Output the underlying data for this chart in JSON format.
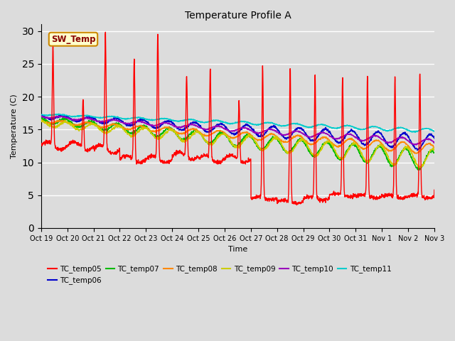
{
  "title": "Temperature Profile A",
  "xlabel": "Time",
  "ylabel": "Temperature (C)",
  "ylim": [
    0,
    31
  ],
  "yticks": [
    0,
    5,
    10,
    15,
    20,
    25,
    30
  ],
  "legend_entries": [
    "TC_temp05",
    "TC_temp06",
    "TC_temp07",
    "TC_temp08",
    "TC_temp09",
    "TC_temp10",
    "TC_temp11"
  ],
  "line_colors": [
    "#ff0000",
    "#0000cc",
    "#00bb00",
    "#ff8800",
    "#cccc00",
    "#9900bb",
    "#00cccc"
  ],
  "sw_temp_label": "SW_Temp",
  "sw_temp_box_color": "#ffffcc",
  "sw_temp_border_color": "#cc8800",
  "sw_temp_text_color": "#880000",
  "background_color": "#dcdcdc",
  "xtick_labels": [
    "Oct 19",
    "Oct 20",
    "Oct 21",
    "Oct 22",
    "Oct 23",
    "Oct 24",
    "Oct 25",
    "Oct 26",
    "Oct 27",
    "Oct 28",
    "Oct 29",
    "Oct 30",
    "Oct 31",
    "Nov 1",
    "Nov 2",
    "Nov 3"
  ],
  "n_points": 2000,
  "n_days": 15
}
